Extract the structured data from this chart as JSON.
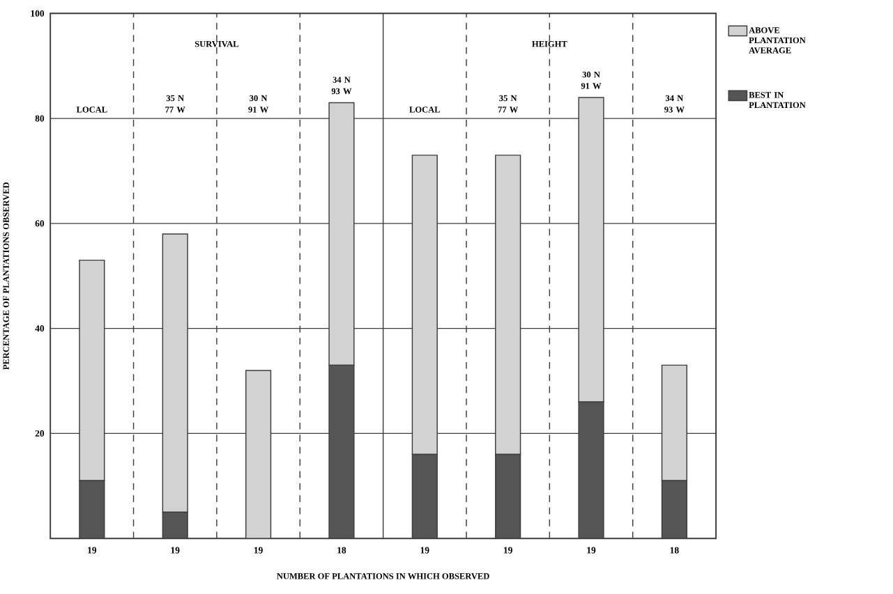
{
  "chart_data": {
    "type": "bar",
    "stacked": true,
    "ylabel": "PERCENTAGE OF PLANTATIONS OBSERVED",
    "xlabel": "NUMBER OF PLANTATIONS IN WHICH OBSERVED",
    "categories": [
      "19",
      "19",
      "19",
      "18",
      "19",
      "19",
      "19",
      "18"
    ],
    "series": [
      {
        "name": "BEST IN PLANTATION",
        "color": "#555555",
        "values": [
          11,
          5,
          0,
          33,
          16,
          16,
          26,
          11
        ]
      },
      {
        "name": "ABOVE PLANTATION AVERAGE",
        "color": "#d2d2d2",
        "values": [
          42,
          53,
          32,
          50,
          57,
          57,
          58,
          22
        ]
      }
    ],
    "ylim": [
      0,
      100
    ],
    "yticks": [
      20,
      40,
      60,
      80,
      100
    ],
    "grid": "y",
    "legend": "right",
    "annotations": [
      "SURVIVAL",
      "HEIGHT",
      "LOCAL",
      "35 N 77 W",
      "30 N 91 W",
      "34 N 93 W",
      "LOCAL",
      "35 N 77 W",
      "30 N 91 W",
      "34 N 93 W"
    ]
  }
}
